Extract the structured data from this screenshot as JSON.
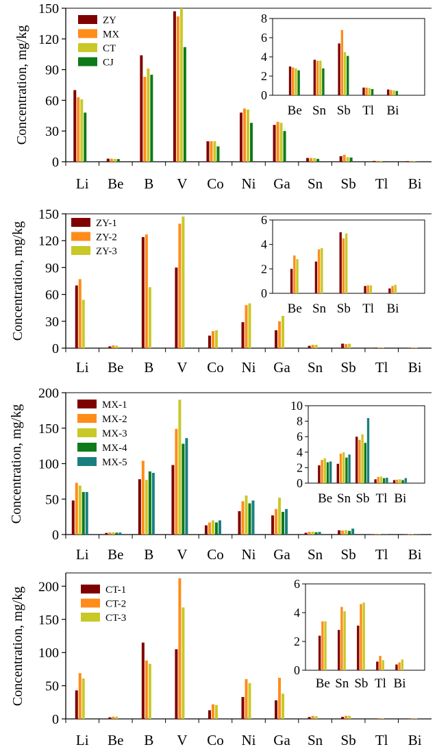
{
  "chart_data": [
    {
      "type": "bar",
      "ylabel": "Concentration, mg/kg",
      "categories": [
        "Li",
        "Be",
        "B",
        "V",
        "Co",
        "Ni",
        "Ga",
        "Sn",
        "Sb",
        "Tl",
        "Bi"
      ],
      "ylim": [
        0,
        150
      ],
      "yticks": [
        0,
        30,
        60,
        90,
        120,
        150
      ],
      "legend": "top-left",
      "series": [
        {
          "name": "ZY",
          "color": "#7f0000",
          "values": [
            70,
            3.0,
            104,
            147,
            20,
            48,
            36,
            3.7,
            5.4,
            0.8,
            0.6
          ]
        },
        {
          "name": "MX",
          "color": "#ff8c1a",
          "values": [
            63,
            2.9,
            83,
            142,
            20,
            52,
            39,
            3.6,
            6.8,
            0.8,
            0.55
          ]
        },
        {
          "name": "CT",
          "color": "#c8c827",
          "values": [
            61,
            2.8,
            91,
            155,
            20,
            51,
            38,
            3.6,
            4.5,
            0.75,
            0.5
          ]
        },
        {
          "name": "CJ",
          "color": "#0f7a1a",
          "values": [
            48,
            2.6,
            85,
            112,
            15,
            38,
            30,
            2.8,
            4.1,
            0.65,
            0.45
          ]
        }
      ],
      "inset": {
        "categories": [
          "Be",
          "Sn",
          "Sb",
          "Tl",
          "Bi"
        ],
        "ylim": [
          0,
          8
        ],
        "yticks": [
          0,
          2,
          4,
          6,
          8
        ]
      }
    },
    {
      "type": "bar",
      "ylabel": "Concentration, mg/kg",
      "categories": [
        "Li",
        "Be",
        "B",
        "V",
        "Co",
        "Ni",
        "Ga",
        "Sn",
        "Sb",
        "Tl",
        "Bi"
      ],
      "ylim": [
        0,
        150
      ],
      "yticks": [
        0,
        30,
        60,
        90,
        120,
        150
      ],
      "legend": "top-left",
      "series": [
        {
          "name": "ZY-1",
          "color": "#7f0000",
          "values": [
            70,
            2.0,
            124,
            90,
            14,
            29,
            20,
            2.6,
            5.0,
            0.6,
            0.4
          ]
        },
        {
          "name": "ZY-2",
          "color": "#ff8c1a",
          "values": [
            77,
            3.1,
            127,
            139,
            19,
            48,
            30,
            3.6,
            4.5,
            0.65,
            0.6
          ]
        },
        {
          "name": "ZY-3",
          "color": "#c8c827",
          "values": [
            54,
            2.8,
            68,
            147,
            20,
            50,
            36,
            3.7,
            4.9,
            0.65,
            0.7
          ]
        }
      ],
      "inset": {
        "categories": [
          "Be",
          "Sn",
          "Sb",
          "Tl",
          "Bi"
        ],
        "ylim": [
          0,
          6
        ],
        "yticks": [
          0,
          2,
          4,
          6
        ]
      }
    },
    {
      "type": "bar",
      "ylabel": "Concentration, mg/kg",
      "categories": [
        "Li",
        "Be",
        "B",
        "V",
        "Co",
        "Ni",
        "Ga",
        "Sn",
        "Sb",
        "Tl",
        "Bi"
      ],
      "ylim": [
        0,
        200
      ],
      "yticks": [
        0,
        50,
        100,
        150,
        200
      ],
      "legend": "top-left",
      "series": [
        {
          "name": "MX-1",
          "color": "#7f0000",
          "values": [
            48,
            2.3,
            78,
            98,
            13,
            33,
            27,
            2.5,
            6.0,
            0.5,
            0.4
          ]
        },
        {
          "name": "MX-2",
          "color": "#ff8c1a",
          "values": [
            73,
            3.0,
            104,
            149,
            17,
            47,
            36,
            3.8,
            5.6,
            0.8,
            0.45
          ]
        },
        {
          "name": "MX-3",
          "color": "#c8c827",
          "values": [
            69,
            3.2,
            77,
            190,
            20,
            55,
            52,
            4.0,
            6.3,
            0.85,
            0.5
          ]
        },
        {
          "name": "MX-4",
          "color": "#0f7a1a",
          "values": [
            60,
            2.7,
            89,
            128,
            17,
            44,
            32,
            3.3,
            5.2,
            0.65,
            0.4
          ]
        },
        {
          "name": "MX-5",
          "color": "#1a7f7f",
          "values": [
            60,
            2.8,
            87,
            136,
            20,
            48,
            36,
            3.7,
            8.4,
            0.7,
            0.65
          ]
        }
      ],
      "inset": {
        "categories": [
          "Be",
          "Sn",
          "Sb",
          "Tl",
          "Bi"
        ],
        "ylim": [
          0,
          10
        ],
        "yticks": [
          0,
          2,
          4,
          6,
          8,
          10
        ]
      }
    },
    {
      "type": "bar",
      "ylabel": "Concentration, mg/kg",
      "categories": [
        "Li",
        "Be",
        "B",
        "V",
        "Co",
        "Ni",
        "Ga",
        "Sn",
        "Sb",
        "Tl",
        "Bi"
      ],
      "ylim": [
        0,
        220
      ],
      "yticks": [
        0,
        50,
        100,
        150,
        200
      ],
      "legend": "top-left",
      "series": [
        {
          "name": "CT-1",
          "color": "#7f0000",
          "values": [
            43,
            2.4,
            115,
            105,
            13,
            33,
            28,
            2.8,
            3.1,
            0.6,
            0.4
          ]
        },
        {
          "name": "CT-2",
          "color": "#ff8c1a",
          "values": [
            69,
            3.4,
            88,
            212,
            22,
            60,
            62,
            4.4,
            4.6,
            1.0,
            0.55
          ]
        },
        {
          "name": "CT-3",
          "color": "#c8c827",
          "values": [
            61,
            3.4,
            83,
            168,
            21,
            54,
            38,
            4.1,
            4.7,
            0.7,
            0.75
          ]
        }
      ],
      "inset": {
        "categories": [
          "Be",
          "Sn",
          "Sb",
          "Tl",
          "Bi"
        ],
        "ylim": [
          0,
          6
        ],
        "yticks": [
          0,
          2,
          4,
          6
        ]
      }
    }
  ]
}
